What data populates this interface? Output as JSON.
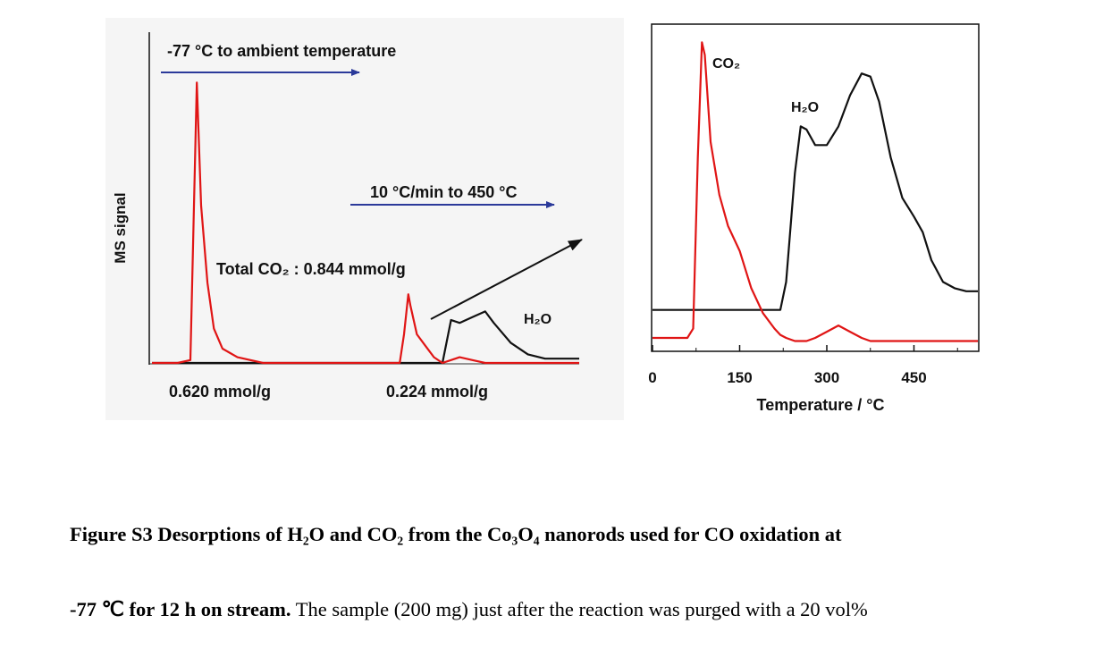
{
  "left_panel": {
    "ylabel": "MS signal",
    "arrow1_label": "-77 °C to ambient temperature",
    "arrow2_label": "10 °C/min to 450 °C",
    "total_label": "Total CO₂ : 0.844 mmol/g",
    "h2o_label": "H₂O",
    "amount1": "0.620 mmol/g",
    "amount2": "0.224 mmol/g"
  },
  "right_panel": {
    "co2_label": "CO₂",
    "h2o_label": "H₂O",
    "xlabel": "Temperature / °C"
  },
  "caption": {
    "line1": "Figure S3 Desorptions of H₂O and CO₂ from the Co₃O₄ nanorods used for CO oxidation at",
    "line2_bold": "-77 ℃ for 12 h on stream.",
    "line2_rest": " The sample (200 mg) just after the reaction was purged with a 20 vol%"
  },
  "colors": {
    "co2": "#e01515",
    "h2o": "#111111",
    "arrow": "#2b3a9a",
    "panel_bg": "#f5f5f5"
  },
  "chart_data": [
    {
      "type": "line",
      "xlabel": "",
      "ylabel": "MS signal",
      "x": [
        0,
        0.06,
        0.09,
        0.105,
        0.115,
        0.13,
        0.145,
        0.165,
        0.2,
        0.26,
        0.4,
        0.58,
        0.59,
        0.6,
        0.605,
        0.62,
        0.64,
        0.66,
        0.68,
        0.7,
        0.72,
        0.75,
        0.78,
        0.8,
        0.84,
        0.88,
        0.92,
        1.0
      ],
      "series": [
        {
          "name": "CO₂",
          "values": [
            0.0,
            0.0,
            0.01,
            0.98,
            0.55,
            0.28,
            0.12,
            0.05,
            0.02,
            0.0,
            0.0,
            0.0,
            0.1,
            0.24,
            0.2,
            0.1,
            0.06,
            0.02,
            0.0,
            0.01,
            0.02,
            0.01,
            0.0,
            0.0,
            0.0,
            0.0,
            0.0,
            0.0
          ]
        },
        {
          "name": "H₂O",
          "values": [
            0.0,
            0.0,
            0.0,
            0.0,
            0.0,
            0.0,
            0.0,
            0.0,
            0.0,
            0.0,
            0.0,
            0.0,
            0.0,
            0.0,
            0.0,
            0.0,
            0.0,
            0.0,
            0.0,
            0.15,
            0.14,
            0.16,
            0.18,
            0.14,
            0.07,
            0.03,
            0.015,
            0.015
          ]
        }
      ]
    },
    {
      "type": "line",
      "xlabel": "Temperature / °C",
      "ylabel": "",
      "xlim": [
        0,
        560
      ],
      "xticks": [
        0,
        150,
        300,
        450
      ],
      "x": [
        0,
        40,
        60,
        70,
        78,
        85,
        90,
        100,
        115,
        130,
        150,
        170,
        190,
        210,
        220,
        230,
        245,
        255,
        265,
        280,
        300,
        320,
        340,
        360,
        375,
        390,
        410,
        430,
        450,
        465,
        480,
        500,
        520,
        540,
        560
      ],
      "series": [
        {
          "name": "CO₂",
          "values": [
            0.02,
            0.02,
            0.02,
            0.05,
            0.6,
            0.97,
            0.93,
            0.65,
            0.48,
            0.38,
            0.3,
            0.18,
            0.1,
            0.05,
            0.03,
            0.02,
            0.01,
            0.01,
            0.01,
            0.02,
            0.04,
            0.06,
            0.04,
            0.02,
            0.01,
            0.01,
            0.01,
            0.01,
            0.01,
            0.01,
            0.01,
            0.01,
            0.01,
            0.01,
            0.01
          ]
        },
        {
          "name": "H₂O",
          "values": [
            0.11,
            0.11,
            0.11,
            0.11,
            0.11,
            0.11,
            0.11,
            0.11,
            0.11,
            0.11,
            0.11,
            0.11,
            0.11,
            0.11,
            0.11,
            0.2,
            0.55,
            0.7,
            0.69,
            0.64,
            0.64,
            0.7,
            0.8,
            0.87,
            0.86,
            0.78,
            0.6,
            0.47,
            0.41,
            0.36,
            0.27,
            0.2,
            0.18,
            0.17,
            0.17
          ]
        }
      ]
    }
  ]
}
